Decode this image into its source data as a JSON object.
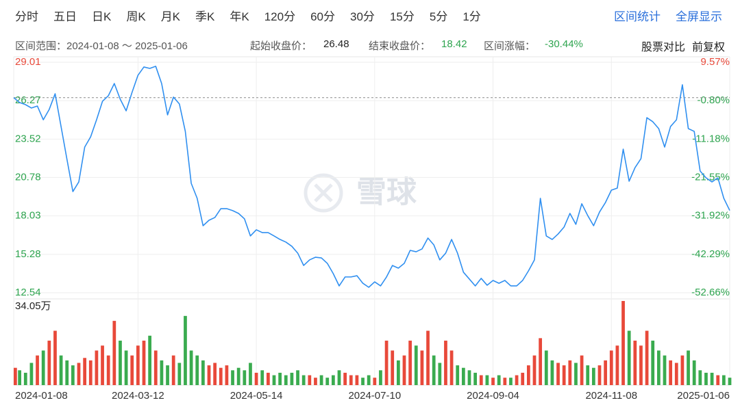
{
  "toolbar": {
    "tabs": [
      "分时",
      "五日",
      "日K",
      "周K",
      "月K",
      "季K",
      "年K",
      "120分",
      "60分",
      "30分",
      "15分",
      "5分",
      "1分"
    ],
    "actions": [
      "区间统计",
      "全屏显示"
    ]
  },
  "info": {
    "range": "区间范围：2024-01-08 ～ 2025-01-06",
    "start_close": {
      "label": "起始收盘价：",
      "value": 26.48
    },
    "end_close": {
      "label": "结束收盘价：",
      "value": 18.42
    },
    "change": {
      "label": "区间涨幅：",
      "value": -30.44,
      "value_label": "-30.44%"
    },
    "tools": [
      "股票对比",
      "前复权"
    ]
  },
  "watermark": "雪球",
  "chart_data": [
    {
      "type": "line",
      "categories": [
        "2024-01-08",
        null,
        null,
        null,
        null,
        null,
        null,
        null,
        null,
        null,
        null,
        null,
        null,
        null,
        null,
        null,
        null,
        null,
        null,
        null,
        null,
        "2024-03-12",
        null,
        null,
        null,
        null,
        null,
        null,
        null,
        null,
        null,
        null,
        null,
        null,
        null,
        null,
        null,
        null,
        null,
        null,
        null,
        "2024-05-14",
        null,
        null,
        null,
        null,
        null,
        null,
        null,
        null,
        null,
        null,
        null,
        null,
        null,
        null,
        null,
        null,
        null,
        null,
        null,
        "2024-07-10",
        null,
        null,
        null,
        null,
        null,
        null,
        null,
        null,
        null,
        null,
        null,
        null,
        null,
        null,
        null,
        null,
        null,
        null,
        null,
        "2024-09-04",
        null,
        null,
        null,
        null,
        null,
        null,
        null,
        null,
        null,
        null,
        null,
        null,
        null,
        null,
        null,
        null,
        null,
        null,
        null,
        "2024-11-08",
        null,
        null,
        null,
        null,
        null,
        null,
        null,
        null,
        null,
        null,
        null,
        null,
        null,
        null,
        null,
        null,
        null,
        null,
        null,
        "2025-01-06"
      ],
      "series": [
        {
          "color": "#2f8ff0",
          "values": [
            26.48,
            26.13,
            25.98,
            25.74,
            25.88,
            24.9,
            25.64,
            26.76,
            24.42,
            22.07,
            19.77,
            20.46,
            22.95,
            23.68,
            24.9,
            26.22,
            26.62,
            27.49,
            26.37,
            25.54,
            26.86,
            28.08,
            28.67,
            28.57,
            28.72,
            27.49,
            25.25,
            26.52,
            26.03,
            24.07,
            20.36,
            19.29,
            17.33,
            17.72,
            17.92,
            18.55,
            18.55,
            18.41,
            18.21,
            17.82,
            16.6,
            17.04,
            16.84,
            16.84,
            16.6,
            16.35,
            16.16,
            15.86,
            15.37,
            14.49,
            14.89,
            15.08,
            15.03,
            14.64,
            13.91,
            13.03,
            13.67,
            13.67,
            13.76,
            13.22,
            12.93,
            13.32,
            13.03,
            13.67,
            14.49,
            14.3,
            14.64,
            15.57,
            15.47,
            15.67,
            16.45,
            15.96,
            14.89,
            15.37,
            16.35,
            15.37,
            14.01,
            13.52,
            13.03,
            13.57,
            13.08,
            13.42,
            13.22,
            13.42,
            13.03,
            13.03,
            13.42,
            14.11,
            14.89,
            19.29,
            16.6,
            16.35,
            16.74,
            17.23,
            18.21,
            17.43,
            18.9,
            18.06,
            17.33,
            18.31,
            18.99,
            19.87,
            20.02,
            22.8,
            20.51,
            21.48,
            22.12,
            25.05,
            24.76,
            24.27,
            22.95,
            24.42,
            24.9,
            27.4,
            24.27,
            24.07,
            21.24,
            20.75,
            20.46,
            20.75,
            19.29,
            18.42
          ]
        }
      ],
      "ylim": [
        12.54,
        29.01
      ],
      "yticks": [
        29.01,
        26.27,
        23.52,
        20.78,
        18.03,
        15.28,
        12.54
      ],
      "y2lim": [
        -52.66,
        9.57
      ],
      "y2ticks": [
        {
          "value": 9.57,
          "label": "9.57%"
        },
        {
          "value": -0.8,
          "label": "-0.80%"
        },
        {
          "value": -11.18,
          "label": "-11.18%"
        },
        {
          "value": -21.55,
          "label": "-21.55%"
        },
        {
          "value": -31.92,
          "label": "-31.92%"
        },
        {
          "value": -42.29,
          "label": "-42.29%"
        },
        {
          "value": -52.66,
          "label": "-52.66%"
        }
      ],
      "grid": true
    },
    {
      "type": "bar",
      "values": [
        7,
        6,
        5,
        9,
        12,
        14,
        18,
        22,
        12,
        10,
        8,
        9,
        11,
        10,
        14,
        16,
        12,
        26,
        18,
        14,
        12,
        16,
        18,
        20,
        14,
        10,
        8,
        12,
        9,
        28,
        14,
        12,
        10,
        8,
        9,
        7,
        8,
        6,
        7,
        6,
        9,
        5,
        6,
        5,
        4,
        5,
        4,
        5,
        6,
        4,
        4,
        3,
        4,
        3,
        4,
        6,
        5,
        4,
        4,
        3,
        4,
        3,
        6,
        18,
        14,
        10,
        12,
        18,
        16,
        14,
        22,
        12,
        9,
        18,
        14,
        8,
        7,
        6,
        5,
        4,
        4,
        3,
        4,
        3,
        3,
        4,
        5,
        8,
        12,
        19,
        14,
        10,
        9,
        8,
        10,
        9,
        12,
        8,
        7,
        8,
        10,
        14,
        16,
        34.05,
        22,
        18,
        16,
        22,
        18,
        14,
        12,
        10,
        9,
        12,
        14,
        10,
        6,
        5,
        5,
        4,
        4,
        3
      ],
      "ylim": [
        0,
        34.05
      ],
      "yticks": [
        {
          "value": 34.05,
          "label": "34.05万"
        }
      ],
      "colors": {
        "up": "#e8493a",
        "down": "#3aab4f"
      }
    }
  ]
}
